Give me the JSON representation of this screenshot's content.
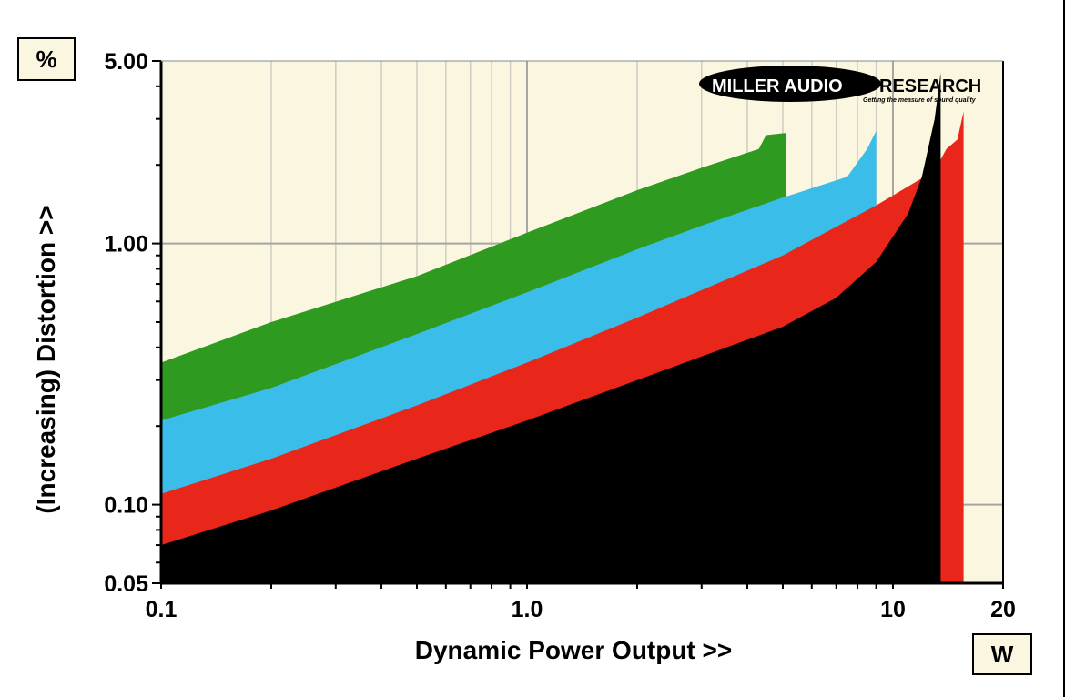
{
  "chart_data": {
    "type": "area",
    "xscale": "log",
    "yscale": "log",
    "xlim": [
      0.1,
      20
    ],
    "ylim": [
      0.05,
      5.0
    ],
    "xlabel": "Dynamic Power Output >>",
    "ylabel": "(Increasing) Distortion >>",
    "x_unit": "W",
    "y_unit": "%",
    "xticks": [
      "0.1",
      "1.0",
      "10",
      "20"
    ],
    "yticks": [
      "5.00",
      "1.00",
      "0.10",
      "0.05"
    ],
    "grid": true,
    "logo": {
      "name": "MILLER AUDIO",
      "suffix": "RESEARCH",
      "tagline": "Getting the measure of sound quality"
    },
    "colors": {
      "background": "#fbf6df",
      "green": "#2e9a1f",
      "blue": "#3bbde9",
      "red": "#e8261a",
      "black": "#000000"
    },
    "series": [
      {
        "color": "green",
        "x": [
          0.1,
          0.2,
          0.5,
          1,
          2,
          3,
          4.3,
          4.5,
          5.1
        ],
        "y": [
          0.35,
          0.5,
          0.75,
          1.1,
          1.6,
          1.95,
          2.3,
          2.6,
          2.65
        ]
      },
      {
        "color": "blue",
        "x": [
          0.1,
          0.2,
          0.5,
          1,
          2,
          3,
          5,
          7.5,
          8.5,
          9.0
        ],
        "y": [
          0.21,
          0.28,
          0.45,
          0.65,
          0.95,
          1.17,
          1.5,
          1.8,
          2.3,
          2.7
        ]
      },
      {
        "color": "red",
        "x": [
          0.1,
          0.2,
          0.5,
          1,
          2,
          5,
          9,
          13,
          14,
          15,
          15.6
        ],
        "y": [
          0.11,
          0.15,
          0.24,
          0.35,
          0.52,
          0.9,
          1.4,
          1.9,
          2.3,
          2.5,
          3.2
        ]
      },
      {
        "color": "black",
        "x": [
          0.1,
          0.2,
          0.5,
          1,
          2,
          5,
          7,
          9,
          11,
          12,
          13,
          13.5
        ],
        "y": [
          0.07,
          0.095,
          0.15,
          0.21,
          0.3,
          0.48,
          0.62,
          0.85,
          1.3,
          1.8,
          3.0,
          4.5
        ]
      }
    ]
  }
}
